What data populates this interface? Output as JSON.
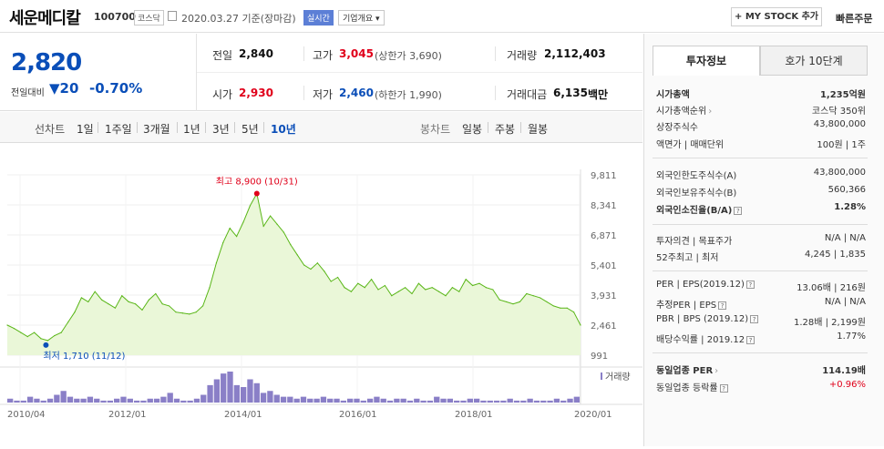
{
  "header": {
    "title": "세운메디칼",
    "code": "100700",
    "market": "코스닥",
    "date": "2020.03.27 기준(장마감)",
    "realtime_badge": "실시간",
    "overview_button": "기업개요 ▾",
    "mystock_button": "+ MY STOCK 추가",
    "quick_order": "빠른주문"
  },
  "price": {
    "current": "2,820",
    "compare_label": "전일대비",
    "change": "▼20",
    "change_pct": "-0.70%",
    "prev_close_label": "전일",
    "prev_close": "2,840",
    "high_label": "고가",
    "high": "3,045",
    "upper_limit": "(상한가 3,690)",
    "volume_label": "거래량",
    "volume": "2,112,403",
    "open_label": "시가",
    "open": "2,930",
    "low_label": "저가",
    "low": "2,460",
    "lower_limit": "(하한가 1,990)",
    "amount_label": "거래대금",
    "amount": "6,135",
    "amount_unit": "백만"
  },
  "periods": {
    "line_label": "선차트",
    "line": [
      "1일",
      "1주일",
      "3개월",
      "1년",
      "3년",
      "5년",
      "10년"
    ],
    "active": "10년",
    "candle_label": "봉차트",
    "candle": [
      "일봉",
      "주봉",
      "월봉"
    ]
  },
  "chart_data": {
    "type": "area",
    "y_ticks": [
      "9,811",
      "8,341",
      "6,871",
      "5,401",
      "3,931",
      "2,461",
      "991"
    ],
    "x_ticks": [
      "2010/04",
      "2012/01",
      "2014/01",
      "2016/01",
      "2018/01",
      "2020/01"
    ],
    "ylim": [
      991,
      9811
    ],
    "high_annotation": "최고 8,900 (10/31)",
    "low_annotation": "최저 1,710 (11/12)",
    "volume_label": "거래량",
    "series": [
      {
        "values": [
          2461,
          2300,
          2100,
          1900,
          2100,
          1800,
          1710,
          1950,
          2100,
          2600,
          3100,
          3800,
          3600,
          4100,
          3700,
          3500,
          3300,
          3900,
          3600,
          3500,
          3200,
          3700,
          4000,
          3500,
          3400,
          3100,
          3050,
          3000,
          3100,
          3400,
          4300,
          5500,
          6500,
          7200,
          6800,
          7500,
          8300,
          8900,
          7300,
          7800,
          7400,
          7000,
          6400,
          5900,
          5400,
          5200,
          5500,
          5100,
          4600,
          4800,
          4300,
          4100,
          4500,
          4300,
          4700,
          4200,
          4400,
          3900,
          4100,
          4300,
          4000,
          4500,
          4200,
          4300,
          4100,
          3900,
          4300,
          4100,
          4700,
          4400,
          4500,
          4300,
          4200,
          3700,
          3600,
          3500,
          3600,
          4000,
          3900,
          3800,
          3600,
          3400,
          3300,
          3300,
          3100,
          2461
        ]
      }
    ],
    "volume": [
      2,
      1,
      1,
      3,
      2,
      1,
      2,
      4,
      6,
      3,
      2,
      2,
      3,
      2,
      1,
      1,
      2,
      3,
      2,
      1,
      1,
      2,
      2,
      3,
      5,
      2,
      1,
      1,
      2,
      4,
      9,
      12,
      15,
      16,
      9,
      8,
      12,
      10,
      5,
      6,
      4,
      3,
      3,
      2,
      3,
      2,
      2,
      3,
      2,
      2,
      1,
      2,
      2,
      1,
      2,
      3,
      2,
      1,
      2,
      2,
      1,
      2,
      1,
      1,
      3,
      2,
      2,
      1,
      1,
      2,
      2,
      1,
      1,
      1,
      1,
      2,
      1,
      1,
      2,
      1,
      1,
      1,
      2,
      1,
      2,
      3
    ]
  },
  "right_panel": {
    "tab_info": "투자정보",
    "tab_ask": "호가 10단계",
    "rows": [
      {
        "k": "시가총액",
        "v": "1,235억원",
        "bold": true
      },
      {
        "k": "시가총액순위",
        "v": "코스닥 350위",
        "arrow": true
      },
      {
        "k": "상장주식수",
        "v": "43,800,000"
      },
      {
        "k": "액면가 | 매매단위",
        "v": "100원 | 1주"
      },
      {
        "k": "외국인한도주식수(A)",
        "v": "43,800,000"
      },
      {
        "k": "외국인보유주식수(B)",
        "v": "560,366"
      },
      {
        "k": "외국인소진율(B/A)",
        "v": "1.28%",
        "bold": true,
        "q": true
      },
      {
        "k": "투자의견 | 목표주가",
        "v": "N/A | N/A"
      },
      {
        "k": "52주최고 | 최저",
        "v": "4,245 | 1,835"
      },
      {
        "k": "PER | EPS(2019.12)",
        "v": "13.06배 | 216원",
        "q": true
      },
      {
        "k": "추정PER | EPS",
        "v": "N/A | N/A",
        "q": true
      },
      {
        "k": "PBR | BPS (2019.12)",
        "v": "1.28배 | 2,199원",
        "q": true
      },
      {
        "k": "배당수익률 | 2019.12",
        "v": "1.77%",
        "q": true
      },
      {
        "k": "동일업종 PER",
        "v": "114.19배",
        "bold": true,
        "arrow": true
      },
      {
        "k": "동일업종 등락률",
        "v": "+0.96%",
        "red": true,
        "q": true
      }
    ]
  }
}
